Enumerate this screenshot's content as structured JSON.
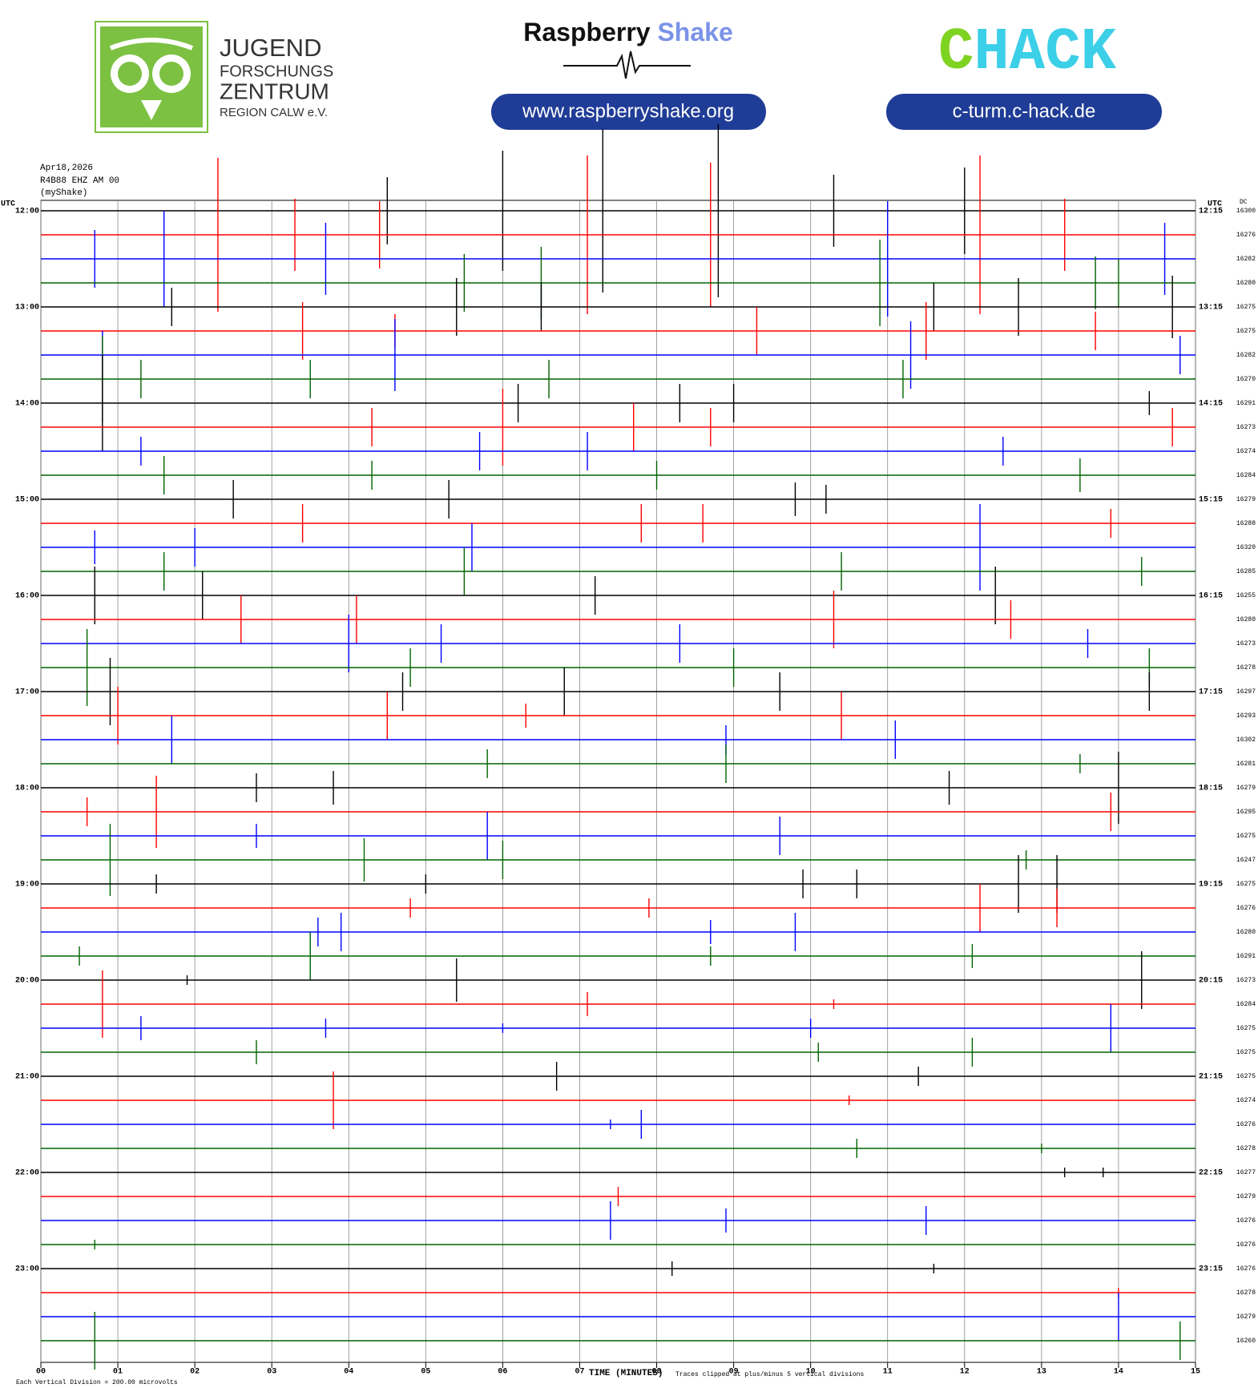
{
  "header": {
    "logo_left_lines": [
      "JUGEND",
      "FORSCHUNGS",
      "ZENTRUM",
      "REGION CALW e.V."
    ],
    "logo_center_parts": [
      "Raspberry",
      "Shake"
    ],
    "url_center": "www.raspberryshake.org",
    "logo_right_parts": [
      "C",
      "HACK"
    ],
    "url_right": "c-turm.c-hack.de"
  },
  "chart_data": {
    "type": "helicorder",
    "info_lines": [
      "Apr18,2026",
      "R4B88 EHZ AM 00",
      "(myShake)"
    ],
    "left_axis_label": "UTC",
    "right_axis_label": "UTC",
    "dc_label": "DC",
    "xlabel": "TIME (MINUTES)",
    "footnote_left": "Each Vertical Division =  200.00 microvolts",
    "footnote_right": "Traces clipped at plus/minus 5 vertical divisions",
    "xlim": [
      0,
      15
    ],
    "xticks": [
      {
        "value": 0,
        "label": "00"
      },
      {
        "value": 1,
        "label": "01"
      },
      {
        "value": 2,
        "label": "02"
      },
      {
        "value": 3,
        "label": "03"
      },
      {
        "value": 4,
        "label": "04"
      },
      {
        "value": 5,
        "label": "05"
      },
      {
        "value": 6,
        "label": "06"
      },
      {
        "value": 7,
        "label": "07"
      },
      {
        "value": 8,
        "label": "08"
      },
      {
        "value": 9,
        "label": "09"
      },
      {
        "value": 10,
        "label": "10"
      },
      {
        "value": 11,
        "label": "11"
      },
      {
        "value": 12,
        "label": "12"
      },
      {
        "value": 13,
        "label": "13"
      },
      {
        "value": 14,
        "label": "14"
      },
      {
        "value": 15,
        "label": "15"
      }
    ],
    "hour_labels_left": [
      "12:00",
      "13:00",
      "14:00",
      "15:00",
      "16:00",
      "17:00",
      "18:00",
      "19:00",
      "20:00",
      "21:00",
      "22:00",
      "23:00"
    ],
    "hour_labels_right": [
      "12:15",
      "13:15",
      "14:15",
      "15:15",
      "16:15",
      "17:15",
      "18:15",
      "19:15",
      "20:15",
      "21:15",
      "22:15",
      "23:15"
    ],
    "grid": true,
    "traces": [
      {
        "dc": 16300,
        "color": "#000000",
        "x": [
          4.5,
          6.0,
          7.3,
          8.8,
          10.3,
          12.0
        ],
        "values": [
          1.4,
          2.5,
          3.4,
          3.6,
          1.5,
          1.8
        ]
      },
      {
        "dc": 16276,
        "color": "#ff0000",
        "x": [
          2.3,
          3.3,
          4.4,
          7.1,
          8.7,
          12.2,
          13.3
        ],
        "values": [
          3.2,
          1.5,
          1.4,
          3.3,
          3.0,
          3.3,
          1.5
        ]
      },
      {
        "dc": 16282,
        "color": "#0000ff",
        "x": [
          0.7,
          1.6,
          3.7,
          11.0,
          14.6
        ],
        "values": [
          1.2,
          2.0,
          1.5,
          2.4,
          1.5
        ]
      },
      {
        "dc": 16280,
        "color": "#006400",
        "x": [
          5.5,
          6.5,
          10.9,
          13.7,
          14.0
        ],
        "values": [
          1.2,
          1.5,
          1.8,
          1.1,
          1.0
        ]
      },
      {
        "dc": 16275,
        "color": "#000000",
        "x": [
          1.7,
          5.4,
          6.5,
          11.6,
          12.7,
          14.7
        ],
        "values": [
          0.8,
          1.2,
          1.0,
          1.0,
          1.2,
          1.3
        ]
      },
      {
        "dc": 16275,
        "color": "#ff0000",
        "x": [
          3.4,
          4.6,
          9.3,
          11.5,
          13.7
        ],
        "values": [
          1.2,
          0.7,
          1.0,
          1.2,
          0.8
        ]
      },
      {
        "dc": 16282,
        "color": "#0000ff",
        "x": [
          0.8,
          4.6,
          11.3,
          14.8
        ],
        "values": [
          1.0,
          1.5,
          1.4,
          0.8
        ]
      },
      {
        "dc": 16270,
        "color": "#006400",
        "x": [
          0.8,
          1.3,
          3.5,
          6.6,
          11.2
        ],
        "values": [
          1.8,
          0.8,
          0.8,
          0.8,
          0.8
        ]
      },
      {
        "dc": 16291,
        "color": "#000000",
        "x": [
          0.8,
          6.2,
          8.3,
          9.0,
          14.4
        ],
        "values": [
          2.0,
          0.8,
          0.8,
          0.8,
          0.5
        ]
      },
      {
        "dc": 16273,
        "color": "#ff0000",
        "x": [
          4.3,
          6.0,
          7.7,
          8.7,
          14.7
        ],
        "values": [
          0.8,
          1.6,
          1.0,
          0.8,
          0.8
        ]
      },
      {
        "dc": 16274,
        "color": "#0000ff",
        "x": [
          1.3,
          5.7,
          7.1,
          12.5
        ],
        "values": [
          0.6,
          0.8,
          0.8,
          0.6
        ]
      },
      {
        "dc": 16284,
        "color": "#006400",
        "x": [
          1.6,
          4.3,
          8.0,
          13.5
        ],
        "values": [
          0.8,
          0.6,
          0.6,
          0.7
        ]
      },
      {
        "dc": 16279,
        "color": "#000000",
        "x": [
          2.5,
          5.3,
          9.8,
          10.2
        ],
        "values": [
          0.8,
          0.8,
          0.7,
          0.6
        ]
      },
      {
        "dc": 16288,
        "color": "#ff0000",
        "x": [
          3.4,
          7.8,
          8.6,
          13.9
        ],
        "values": [
          0.8,
          0.8,
          0.8,
          0.6
        ]
      },
      {
        "dc": 16320,
        "color": "#0000ff",
        "x": [
          0.7,
          2.0,
          5.6,
          12.2
        ],
        "values": [
          0.7,
          0.8,
          1.0,
          1.8
        ]
      },
      {
        "dc": 16285,
        "color": "#006400",
        "x": [
          1.6,
          5.5,
          10.4,
          14.3
        ],
        "values": [
          0.8,
          1.0,
          0.8,
          0.6
        ]
      },
      {
        "dc": 16255,
        "color": "#000000",
        "x": [
          0.7,
          2.1,
          7.2,
          12.4
        ],
        "values": [
          1.2,
          1.0,
          0.8,
          1.2
        ]
      },
      {
        "dc": 16280,
        "color": "#ff0000",
        "x": [
          2.6,
          4.1,
          10.3,
          12.6
        ],
        "values": [
          1.0,
          1.0,
          1.2,
          0.8
        ]
      },
      {
        "dc": 16273,
        "color": "#0000ff",
        "x": [
          4.0,
          5.2,
          8.3,
          13.6
        ],
        "values": [
          1.2,
          0.8,
          0.8,
          0.6
        ]
      },
      {
        "dc": 16278,
        "color": "#006400",
        "x": [
          0.6,
          4.8,
          9.0,
          14.4
        ],
        "values": [
          1.6,
          0.8,
          0.8,
          0.8
        ]
      },
      {
        "dc": 16297,
        "color": "#000000",
        "x": [
          0.9,
          4.7,
          6.8,
          9.6,
          14.4
        ],
        "values": [
          1.4,
          0.8,
          1.0,
          0.8,
          0.8
        ]
      },
      {
        "dc": 16293,
        "color": "#ff0000",
        "x": [
          1.0,
          4.5,
          6.3,
          10.4
        ],
        "values": [
          1.2,
          1.0,
          0.5,
          1.0
        ]
      },
      {
        "dc": 16302,
        "color": "#0000ff",
        "x": [
          1.7,
          8.9,
          11.1
        ],
        "values": [
          1.0,
          0.6,
          0.8
        ]
      },
      {
        "dc": 16281,
        "color": "#006400",
        "x": [
          5.8,
          8.9,
          13.5
        ],
        "values": [
          0.6,
          0.8,
          0.4
        ]
      },
      {
        "dc": 16279,
        "color": "#000000",
        "x": [
          2.8,
          3.8,
          11.8,
          14.0
        ],
        "values": [
          0.6,
          0.7,
          0.7,
          1.5
        ]
      },
      {
        "dc": 16295,
        "color": "#ff0000",
        "x": [
          0.6,
          1.5,
          13.9
        ],
        "values": [
          0.6,
          1.5,
          0.8
        ]
      },
      {
        "dc": 16275,
        "color": "#0000ff",
        "x": [
          2.8,
          5.8,
          9.6
        ],
        "values": [
          0.5,
          1.0,
          0.8
        ]
      },
      {
        "dc": 16247,
        "color": "#006400",
        "x": [
          0.9,
          4.2,
          6.0,
          12.8
        ],
        "values": [
          1.5,
          0.9,
          0.8,
          0.4
        ]
      },
      {
        "dc": 16275,
        "color": "#000000",
        "x": [
          1.5,
          5.0,
          9.9,
          10.6,
          12.7,
          13.2
        ],
        "values": [
          0.4,
          0.4,
          0.6,
          0.6,
          1.2,
          1.2
        ]
      },
      {
        "dc": 16276,
        "color": "#ff0000",
        "x": [
          4.8,
          7.9,
          12.2,
          13.2
        ],
        "values": [
          0.4,
          0.4,
          1.0,
          0.8
        ]
      },
      {
        "dc": 16280,
        "color": "#0000ff",
        "x": [
          3.6,
          3.9,
          8.7,
          9.8
        ],
        "values": [
          0.6,
          0.8,
          0.5,
          0.8
        ]
      },
      {
        "dc": 16291,
        "color": "#006400",
        "x": [
          0.5,
          3.5,
          8.7,
          12.1
        ],
        "values": [
          0.4,
          1.0,
          0.4,
          0.5
        ]
      },
      {
        "dc": 16273,
        "color": "#000000",
        "x": [
          1.9,
          5.4,
          14.3
        ],
        "values": [
          0.2,
          0.9,
          1.2
        ]
      },
      {
        "dc": 16284,
        "color": "#ff0000",
        "x": [
          0.8,
          7.1,
          10.3
        ],
        "values": [
          1.4,
          0.5,
          0.2
        ]
      },
      {
        "dc": 16275,
        "color": "#0000ff",
        "x": [
          1.3,
          3.7,
          6.0,
          10.0,
          13.9
        ],
        "values": [
          0.5,
          0.4,
          0.2,
          0.4,
          1.0
        ]
      },
      {
        "dc": 16275,
        "color": "#006400",
        "x": [
          2.8,
          10.1,
          12.1
        ],
        "values": [
          0.5,
          0.4,
          0.6
        ]
      },
      {
        "dc": 16275,
        "color": "#000000",
        "x": [
          6.7,
          11.4
        ],
        "values": [
          0.6,
          0.4
        ]
      },
      {
        "dc": 16274,
        "color": "#ff0000",
        "x": [
          3.8,
          10.5
        ],
        "values": [
          1.2,
          0.2
        ]
      },
      {
        "dc": 16276,
        "color": "#0000ff",
        "x": [
          7.4,
          7.8
        ],
        "values": [
          0.2,
          0.6
        ]
      },
      {
        "dc": 16278,
        "color": "#006400",
        "x": [
          10.6,
          13.0
        ],
        "values": [
          0.4,
          0.2
        ]
      },
      {
        "dc": 16277,
        "color": "#000000",
        "x": [
          13.3,
          13.8
        ],
        "values": [
          0.2,
          0.2
        ]
      },
      {
        "dc": 16279,
        "color": "#ff0000",
        "x": [
          7.5
        ],
        "values": [
          0.4
        ]
      },
      {
        "dc": 16276,
        "color": "#0000ff",
        "x": [
          7.4,
          8.9,
          11.5
        ],
        "values": [
          0.8,
          0.5,
          0.6
        ]
      },
      {
        "dc": 16276,
        "color": "#006400",
        "x": [
          0.7
        ],
        "values": [
          0.2
        ]
      },
      {
        "dc": 16276,
        "color": "#000000",
        "x": [
          8.2,
          11.6
        ],
        "values": [
          0.3,
          0.2
        ]
      },
      {
        "dc": 16278,
        "color": "#ff0000",
        "x": [
          14.0
        ],
        "values": [
          0.2
        ]
      },
      {
        "dc": 16279,
        "color": "#0000ff",
        "x": [
          14.0
        ],
        "values": [
          1.0
        ]
      },
      {
        "dc": 16260,
        "color": "#006400",
        "x": [
          0.7,
          14.8
        ],
        "values": [
          1.2,
          0.8
        ]
      }
    ]
  }
}
